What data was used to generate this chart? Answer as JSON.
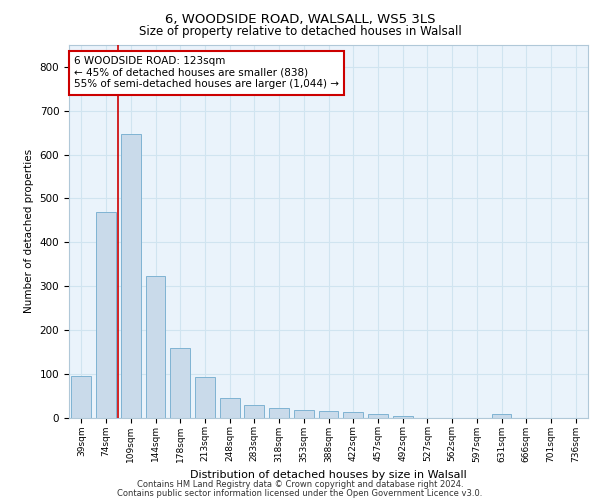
{
  "title_line1": "6, WOODSIDE ROAD, WALSALL, WS5 3LS",
  "title_line2": "Size of property relative to detached houses in Walsall",
  "xlabel": "Distribution of detached houses by size in Walsall",
  "ylabel": "Number of detached properties",
  "categories": [
    "39sqm",
    "74sqm",
    "109sqm",
    "144sqm",
    "178sqm",
    "213sqm",
    "248sqm",
    "283sqm",
    "318sqm",
    "353sqm",
    "388sqm",
    "422sqm",
    "457sqm",
    "492sqm",
    "527sqm",
    "562sqm",
    "597sqm",
    "631sqm",
    "666sqm",
    "701sqm",
    "736sqm"
  ],
  "values": [
    95,
    470,
    648,
    323,
    158,
    93,
    45,
    28,
    22,
    17,
    14,
    13,
    7,
    4,
    0,
    0,
    0,
    8,
    0,
    0,
    0
  ],
  "bar_color": "#c9daea",
  "bar_edge_color": "#7fb3d3",
  "bar_width": 0.8,
  "grid_color": "#d0e4f0",
  "background_color": "#eaf3fb",
  "red_line_x": 1.5,
  "annotation_text": "6 WOODSIDE ROAD: 123sqm\n← 45% of detached houses are smaller (838)\n55% of semi-detached houses are larger (1,044) →",
  "annotation_box_color": "#ffffff",
  "annotation_box_edge": "#cc0000",
  "red_line_color": "#cc0000",
  "ylim": [
    0,
    850
  ],
  "yticks": [
    0,
    100,
    200,
    300,
    400,
    500,
    600,
    700,
    800
  ],
  "footer_line1": "Contains HM Land Registry data © Crown copyright and database right 2024.",
  "footer_line2": "Contains public sector information licensed under the Open Government Licence v3.0."
}
